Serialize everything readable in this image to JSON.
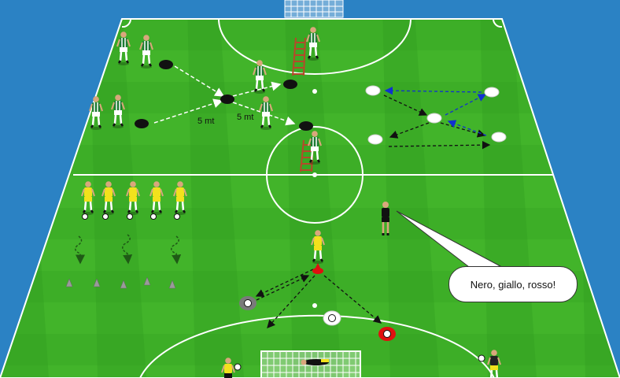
{
  "colors": {
    "background": "#2b82c4",
    "grass_light": "#42b42a",
    "grass_dark": "#2f9a1f",
    "line": "#ffffff",
    "team_green": "#1d7a33",
    "team_yellow": "#f2e21c",
    "referee": "#111111",
    "cone_black": "#111111",
    "cone_red": "#e01010",
    "cone_grey": "#8a8a8a",
    "ladder": "#b5492a",
    "arrow_white": "#ffffff",
    "arrow_black": "#111111",
    "arrow_blue": "#1030d0"
  },
  "labels": {
    "distance_left": "5 mt",
    "distance_right": "5 mt"
  },
  "speech_bubble": {
    "text": "Nero, giallo, rosso!"
  },
  "icons": {
    "ball": "soccer-ball-icon",
    "cone": "cone-icon",
    "ladder": "agility-ladder-icon",
    "goal": "goal-net-icon"
  }
}
